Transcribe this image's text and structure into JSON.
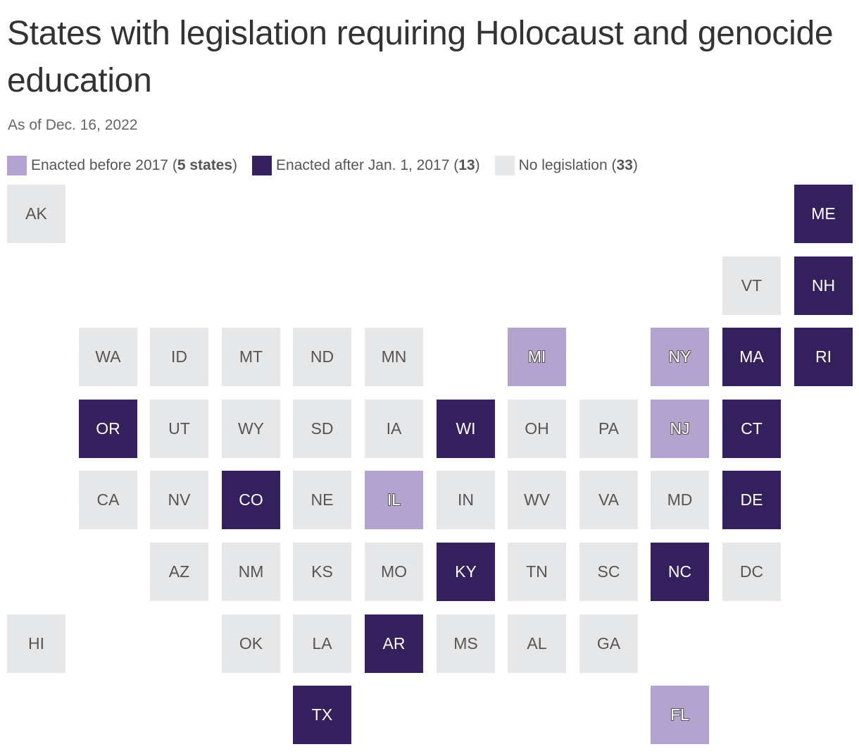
{
  "title": "States with legislation requiring Holocaust and genocide education",
  "subtitle": "As of Dec. 16, 2022",
  "legend": [
    {
      "key": "before",
      "label": "Enacted before 2017 (",
      "count": "5 states",
      "suffix": ")",
      "color": "#b3a3cf"
    },
    {
      "key": "after",
      "label": "Enacted after Jan. 1, 2017 (",
      "count": "13",
      "suffix": ")",
      "color": "#35205e"
    },
    {
      "key": "none",
      "label": "No legislation (",
      "count": "33",
      "suffix": ")",
      "color": "#e6e7e9"
    }
  ],
  "chart_data": {
    "type": "tile-grid-map",
    "categories": {
      "before": "Enacted before 2017",
      "after": "Enacted after Jan. 1, 2017",
      "none": "No legislation"
    },
    "states": [
      {
        "abbr": "AK",
        "col": 0,
        "row": 0,
        "status": "none"
      },
      {
        "abbr": "ME",
        "col": 11,
        "row": 0,
        "status": "after"
      },
      {
        "abbr": "VT",
        "col": 10,
        "row": 1,
        "status": "none"
      },
      {
        "abbr": "NH",
        "col": 11,
        "row": 1,
        "status": "after"
      },
      {
        "abbr": "WA",
        "col": 1,
        "row": 2,
        "status": "none"
      },
      {
        "abbr": "ID",
        "col": 2,
        "row": 2,
        "status": "none"
      },
      {
        "abbr": "MT",
        "col": 3,
        "row": 2,
        "status": "none"
      },
      {
        "abbr": "ND",
        "col": 4,
        "row": 2,
        "status": "none"
      },
      {
        "abbr": "MN",
        "col": 5,
        "row": 2,
        "status": "none"
      },
      {
        "abbr": "MI",
        "col": 7,
        "row": 2,
        "status": "before"
      },
      {
        "abbr": "NY",
        "col": 9,
        "row": 2,
        "status": "before"
      },
      {
        "abbr": "MA",
        "col": 10,
        "row": 2,
        "status": "after"
      },
      {
        "abbr": "RI",
        "col": 11,
        "row": 2,
        "status": "after"
      },
      {
        "abbr": "OR",
        "col": 1,
        "row": 3,
        "status": "after"
      },
      {
        "abbr": "UT",
        "col": 2,
        "row": 3,
        "status": "none"
      },
      {
        "abbr": "WY",
        "col": 3,
        "row": 3,
        "status": "none"
      },
      {
        "abbr": "SD",
        "col": 4,
        "row": 3,
        "status": "none"
      },
      {
        "abbr": "IA",
        "col": 5,
        "row": 3,
        "status": "none"
      },
      {
        "abbr": "WI",
        "col": 6,
        "row": 3,
        "status": "after"
      },
      {
        "abbr": "OH",
        "col": 7,
        "row": 3,
        "status": "none"
      },
      {
        "abbr": "PA",
        "col": 8,
        "row": 3,
        "status": "none"
      },
      {
        "abbr": "NJ",
        "col": 9,
        "row": 3,
        "status": "before"
      },
      {
        "abbr": "CT",
        "col": 10,
        "row": 3,
        "status": "after"
      },
      {
        "abbr": "CA",
        "col": 1,
        "row": 4,
        "status": "none"
      },
      {
        "abbr": "NV",
        "col": 2,
        "row": 4,
        "status": "none"
      },
      {
        "abbr": "CO",
        "col": 3,
        "row": 4,
        "status": "after"
      },
      {
        "abbr": "NE",
        "col": 4,
        "row": 4,
        "status": "none"
      },
      {
        "abbr": "IL",
        "col": 5,
        "row": 4,
        "status": "before"
      },
      {
        "abbr": "IN",
        "col": 6,
        "row": 4,
        "status": "none"
      },
      {
        "abbr": "WV",
        "col": 7,
        "row": 4,
        "status": "none"
      },
      {
        "abbr": "VA",
        "col": 8,
        "row": 4,
        "status": "none"
      },
      {
        "abbr": "MD",
        "col": 9,
        "row": 4,
        "status": "none"
      },
      {
        "abbr": "DE",
        "col": 10,
        "row": 4,
        "status": "after"
      },
      {
        "abbr": "AZ",
        "col": 2,
        "row": 5,
        "status": "none"
      },
      {
        "abbr": "NM",
        "col": 3,
        "row": 5,
        "status": "none"
      },
      {
        "abbr": "KS",
        "col": 4,
        "row": 5,
        "status": "none"
      },
      {
        "abbr": "MO",
        "col": 5,
        "row": 5,
        "status": "none"
      },
      {
        "abbr": "KY",
        "col": 6,
        "row": 5,
        "status": "after"
      },
      {
        "abbr": "TN",
        "col": 7,
        "row": 5,
        "status": "none"
      },
      {
        "abbr": "SC",
        "col": 8,
        "row": 5,
        "status": "none"
      },
      {
        "abbr": "NC",
        "col": 9,
        "row": 5,
        "status": "after"
      },
      {
        "abbr": "DC",
        "col": 10,
        "row": 5,
        "status": "none"
      },
      {
        "abbr": "HI",
        "col": 0,
        "row": 6,
        "status": "none"
      },
      {
        "abbr": "OK",
        "col": 3,
        "row": 6,
        "status": "none"
      },
      {
        "abbr": "LA",
        "col": 4,
        "row": 6,
        "status": "none"
      },
      {
        "abbr": "AR",
        "col": 5,
        "row": 6,
        "status": "after"
      },
      {
        "abbr": "MS",
        "col": 6,
        "row": 6,
        "status": "none"
      },
      {
        "abbr": "AL",
        "col": 7,
        "row": 6,
        "status": "none"
      },
      {
        "abbr": "GA",
        "col": 8,
        "row": 6,
        "status": "none"
      },
      {
        "abbr": "TX",
        "col": 4,
        "row": 7,
        "status": "after"
      },
      {
        "abbr": "FL",
        "col": 9,
        "row": 7,
        "status": "before"
      }
    ]
  }
}
